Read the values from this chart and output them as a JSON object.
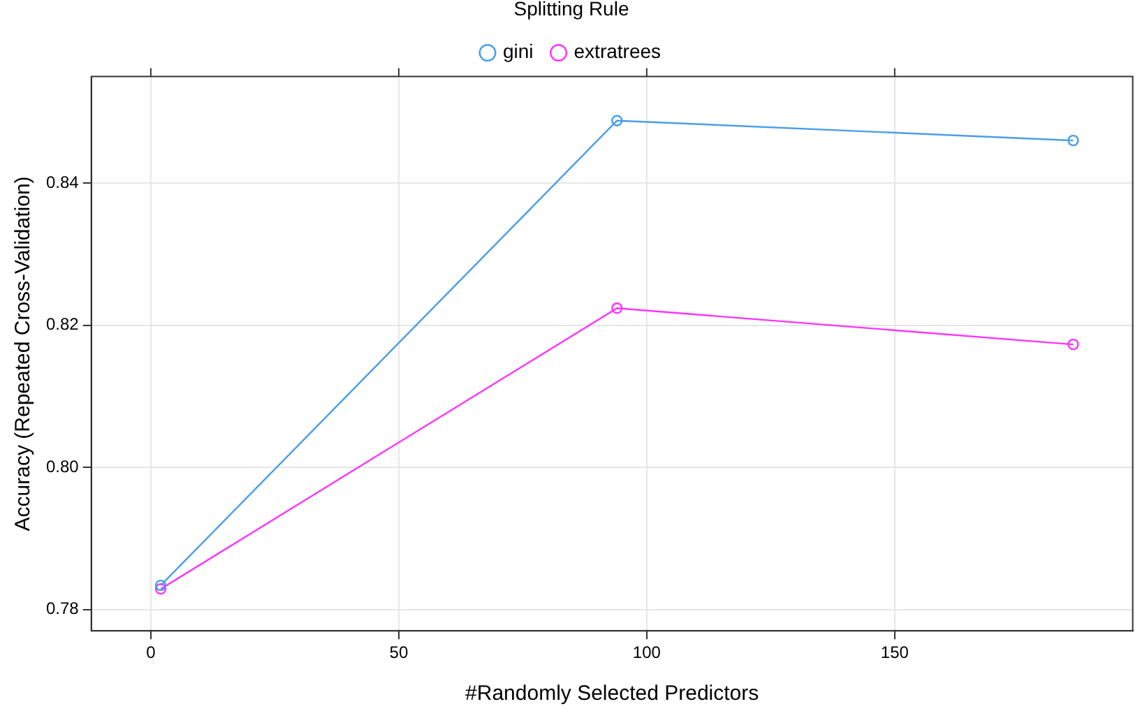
{
  "chart_data": {
    "type": "line",
    "xlabel": "#Randomly Selected Predictors",
    "ylabel": "Accuracy (Repeated Cross-Validation)",
    "legend_title": "Splitting Rule",
    "x": [
      2,
      94,
      186
    ],
    "series": [
      {
        "name": "gini",
        "color": "#4a9ee8",
        "values": [
          0.7834,
          0.8488,
          0.846
        ]
      },
      {
        "name": "extratrees",
        "color": "#ff33ff",
        "values": [
          0.7829,
          0.8224,
          0.8173
        ]
      }
    ],
    "xlim": [
      -12,
      198
    ],
    "xticks": [
      0,
      50,
      100,
      150
    ],
    "ylim": [
      0.777,
      0.855
    ],
    "yticks": [
      0.78,
      {
        "value": 0.8,
        "label": "0.80"
      },
      0.82,
      0.84
    ],
    "grid": true,
    "legend": "top",
    "marker": "circle",
    "line_style": "solid"
  }
}
